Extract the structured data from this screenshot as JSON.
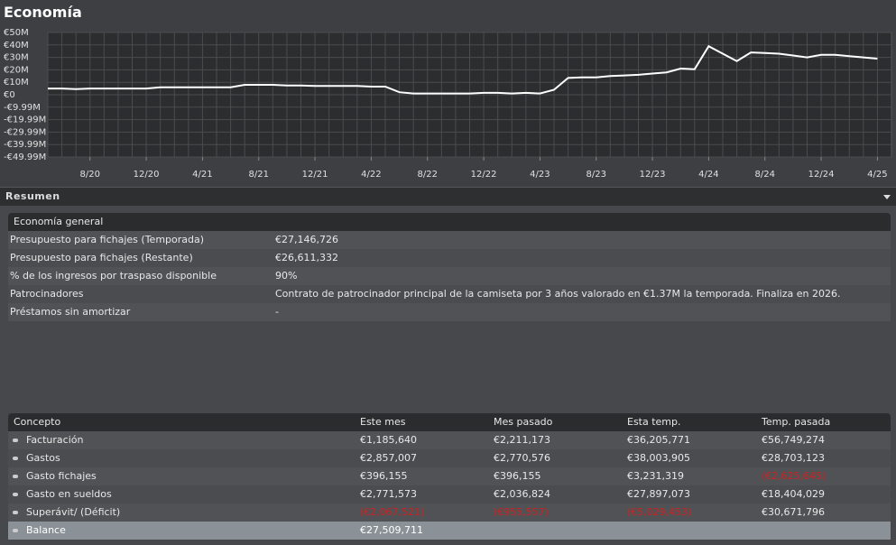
{
  "header": {
    "title": "Economía"
  },
  "chart_data": {
    "type": "line",
    "x": [
      "2020-05",
      "2020-06",
      "2020-07",
      "2020-08",
      "2020-09",
      "2020-10",
      "2020-11",
      "2020-12",
      "2021-01",
      "2021-02",
      "2021-03",
      "2021-04",
      "2021-05",
      "2021-06",
      "2021-07",
      "2021-08",
      "2021-09",
      "2021-10",
      "2021-11",
      "2021-12",
      "2022-01",
      "2022-02",
      "2022-03",
      "2022-04",
      "2022-05",
      "2022-06",
      "2022-07",
      "2022-08",
      "2022-09",
      "2022-10",
      "2022-11",
      "2022-12",
      "2023-01",
      "2023-02",
      "2023-03",
      "2023-04",
      "2023-05",
      "2023-06",
      "2023-07",
      "2023-08",
      "2023-09",
      "2023-10",
      "2023-11",
      "2023-12",
      "2024-01",
      "2024-02",
      "2024-03",
      "2024-04",
      "2024-05",
      "2024-06",
      "2024-07",
      "2024-08",
      "2024-09",
      "2024-10",
      "2024-11",
      "2024-12",
      "2025-01",
      "2025-02",
      "2025-03",
      "2025-04"
    ],
    "series": [
      {
        "color": "#ffffff",
        "values": [
          5000000,
          5000000,
          4500000,
          5000000,
          5000000,
          5000000,
          5000000,
          5000000,
          6000000,
          6000000,
          6000000,
          6000000,
          6000000,
          6000000,
          8000000,
          8000000,
          8000000,
          7500000,
          7500000,
          7000000,
          7000000,
          7000000,
          7000000,
          6500000,
          6500000,
          2000000,
          1000000,
          1000000,
          1000000,
          1000000,
          1000000,
          1500000,
          1500000,
          1000000,
          1500000,
          1000000,
          4000000,
          13500000,
          14000000,
          14000000,
          15000000,
          15500000,
          16000000,
          17000000,
          18000000,
          21000000,
          20500000,
          39000000,
          33000000,
          27000000,
          34000000,
          33500000,
          33000000,
          31500000,
          30000000,
          32000000,
          32000000,
          31000000,
          30000000,
          29000000
        ]
      }
    ],
    "xlim": [
      "2020-05",
      "2025-05"
    ],
    "xticks": [
      {
        "value": "2020-08",
        "label": "8/20"
      },
      {
        "value": "2020-12",
        "label": "12/20"
      },
      {
        "value": "2021-04",
        "label": "4/21"
      },
      {
        "value": "2021-08",
        "label": "8/21"
      },
      {
        "value": "2021-12",
        "label": "12/21"
      },
      {
        "value": "2022-04",
        "label": "4/22"
      },
      {
        "value": "2022-08",
        "label": "8/22"
      },
      {
        "value": "2022-12",
        "label": "12/22"
      },
      {
        "value": "2023-04",
        "label": "4/23"
      },
      {
        "value": "2023-08",
        "label": "8/23"
      },
      {
        "value": "2023-12",
        "label": "12/23"
      },
      {
        "value": "2024-04",
        "label": "4/24"
      },
      {
        "value": "2024-08",
        "label": "8/24"
      },
      {
        "value": "2024-12",
        "label": "12/24"
      },
      {
        "value": "2025-04",
        "label": "4/25"
      }
    ],
    "ylim": [
      -49990000,
      50000000
    ],
    "yticks": [
      {
        "value": 50000000,
        "label": "€50M"
      },
      {
        "value": 40000000,
        "label": "€40M"
      },
      {
        "value": 30000000,
        "label": "€30M"
      },
      {
        "value": 20000000,
        "label": "€20M"
      },
      {
        "value": 10000000,
        "label": "€10M"
      },
      {
        "value": 0,
        "label": "€0"
      },
      {
        "value": -9990000,
        "label": "-€9.99M"
      },
      {
        "value": -19990000,
        "label": "-€19.99M"
      },
      {
        "value": -29990000,
        "label": "-€29.99M"
      },
      {
        "value": -39990000,
        "label": "-€39.99M"
      },
      {
        "value": -49990000,
        "label": "-€49.99M"
      }
    ],
    "grid": true
  },
  "section": {
    "title": "Resumen"
  },
  "general": {
    "title": "Economía general",
    "rows": [
      [
        "Presupuesto para fichajes (Temporada)",
        "€27,146,726"
      ],
      [
        "Presupuesto para fichajes (Restante)",
        "€26,611,332"
      ],
      [
        "% de los ingresos por traspaso disponible",
        "90%"
      ],
      [
        "Patrocinadores",
        "Contrato de patrocinador principal de la camiseta por 3 años valorado en €1.37M la temporada. Finaliza en 2026."
      ],
      [
        "Préstamos sin amortizar",
        "-"
      ]
    ]
  },
  "finance": {
    "columns": [
      "Concepto",
      "Este mes",
      "Mes pasado",
      "Esta temp.",
      "Temp. pasada"
    ],
    "rows": [
      [
        "Facturación",
        "€1,185,640",
        "€2,211,173",
        "€36,205,771",
        "€56,749,274"
      ],
      [
        "Gastos",
        "€2,857,007",
        "€2,770,576",
        "€38,003,905",
        "€28,703,123"
      ],
      [
        "Gasto fichajes",
        "€396,155",
        "€396,155",
        "€3,231,319",
        "(€2,625,645)"
      ],
      [
        "Gasto en sueldos",
        "€2,771,573",
        "€2,036,824",
        "€27,897,073",
        "€18,404,029"
      ],
      [
        "Superávit/ (Déficit)",
        "(€2,067,521)",
        "(€955,557)",
        "(€5,029,453)",
        "€30,671,796"
      ],
      [
        "Balance",
        "€27,509,711"
      ]
    ]
  }
}
